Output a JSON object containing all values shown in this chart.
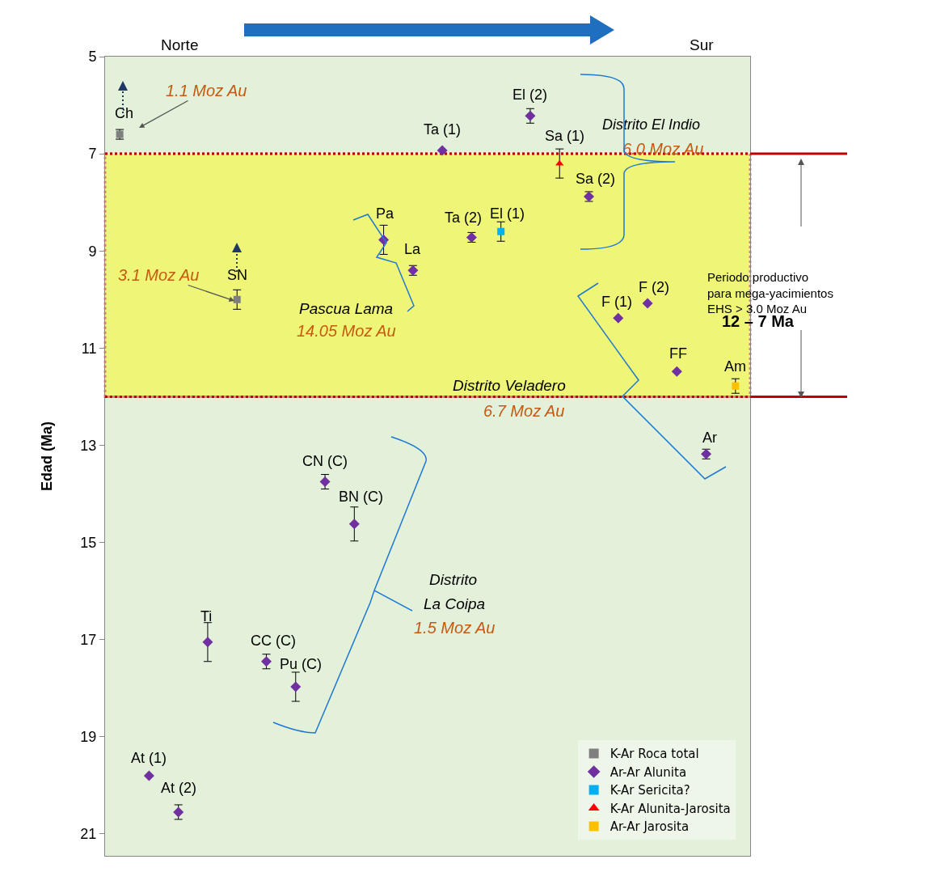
{
  "chart_data": {
    "type": "scatter",
    "ylabel": "Edad (Ma)",
    "categories": [
      null,
      null,
      null,
      null,
      null,
      null,
      null,
      null,
      null,
      null,
      null,
      null,
      null,
      null,
      null,
      null,
      null,
      null,
      null,
      null,
      null,
      null
    ],
    "ylim": [
      21.45,
      5
    ],
    "yticks": [
      5,
      7,
      9,
      11,
      13,
      15,
      17,
      19,
      21
    ],
    "tick_labels": "y",
    "grid": false,
    "legend": "bottom right",
    "series": [
      {
        "name": "K-Ar Roca total",
        "color": "#7f7f7f",
        "marker": "square",
        "values": [
          6.6,
          null,
          null,
          null,
          10.0,
          null,
          null,
          null,
          null,
          null,
          null,
          null,
          null,
          null,
          null,
          null,
          null,
          null,
          null,
          null,
          null,
          null
        ],
        "errors": [
          0.1,
          null,
          null,
          null,
          0.2,
          null,
          null,
          null,
          null,
          null,
          null,
          null,
          null,
          null,
          null,
          null,
          null,
          null,
          null,
          null,
          null,
          null
        ]
      },
      {
        "name": "Ar-Ar Alunita",
        "color": "#7030a0",
        "marker": "diamond",
        "values": [
          null,
          19.8,
          20.55,
          17.05,
          null,
          17.45,
          17.97,
          13.75,
          14.62,
          8.77,
          9.4,
          6.93,
          8.72,
          null,
          6.22,
          null,
          7.88,
          10.38,
          10.08,
          11.48,
          13.18,
          null
        ],
        "errors": [
          null,
          null,
          0.15,
          0.4,
          null,
          0.15,
          0.3,
          0.15,
          0.35,
          0.3,
          0.1,
          null,
          0.1,
          null,
          0.15,
          null,
          0.1,
          null,
          null,
          null,
          0.1,
          null
        ]
      },
      {
        "name": "K-Ar Sericita?",
        "color": "#00b0f0",
        "marker": "square",
        "values": [
          null,
          null,
          null,
          null,
          null,
          null,
          null,
          null,
          null,
          null,
          null,
          null,
          null,
          8.6,
          null,
          null,
          null,
          null,
          null,
          null,
          null,
          null
        ],
        "errors": [
          null,
          null,
          null,
          null,
          null,
          null,
          null,
          null,
          null,
          null,
          null,
          null,
          null,
          0.2,
          null,
          null,
          null,
          null,
          null,
          null,
          null,
          null
        ]
      },
      {
        "name": "K-Ar Alunita-Jarosita",
        "color": "#ff0000",
        "marker": "triangle",
        "values": [
          null,
          null,
          null,
          null,
          null,
          null,
          null,
          null,
          null,
          null,
          null,
          null,
          null,
          null,
          null,
          7.2,
          null,
          null,
          null,
          null,
          null,
          null
        ],
        "errors": [
          null,
          null,
          null,
          null,
          null,
          null,
          null,
          null,
          null,
          null,
          null,
          null,
          null,
          null,
          null,
          0.3,
          null,
          null,
          null,
          null,
          null,
          null
        ]
      },
      {
        "name": "Ar-Ar Jarosita",
        "color": "#ffc000",
        "marker": "square",
        "values": [
          null,
          null,
          null,
          null,
          null,
          null,
          null,
          null,
          null,
          null,
          null,
          null,
          null,
          null,
          null,
          null,
          null,
          null,
          null,
          null,
          null,
          11.78
        ],
        "errors": [
          null,
          null,
          null,
          null,
          null,
          null,
          null,
          null,
          null,
          null,
          null,
          null,
          null,
          null,
          null,
          null,
          null,
          null,
          null,
          null,
          null,
          0.15
        ]
      }
    ],
    "bands": [
      {
        "axis": "y",
        "from": 7,
        "to": 12,
        "color": "#ffff00",
        "label": "Periodo productivo\npara mega-yacimientos\nEHS > 3.0 Moz Au"
      }
    ],
    "ref_lines": [
      {
        "axis": "y",
        "value": 7,
        "color": "#c00000"
      },
      {
        "axis": "y",
        "value": 12,
        "color": "#c00000"
      }
    ],
    "annotations": [
      "Norte",
      "Sur",
      "1.1 Moz Au",
      "3.1 Moz Au",
      "Distrito El Indio",
      "6.0 Moz Au",
      "Pascua Lama",
      "14.05 Moz Au",
      "Distrito Veladero",
      "6.7 Moz Au",
      "Distrito",
      "La Coipa",
      "1.5 Moz Au",
      "12 – 7 Ma",
      {
        "text": "Ch",
        "y": 6.6
      },
      {
        "text": "SN",
        "y": 10.0
      },
      {
        "text": "At (1)",
        "y": 19.8
      },
      {
        "text": "At (2)",
        "y": 20.55
      },
      {
        "text": "Ti",
        "y": 17.05
      },
      {
        "text": "CC (C)",
        "y": 17.45
      },
      {
        "text": "Pu (C)",
        "y": 17.97
      },
      {
        "text": "CN (C)",
        "y": 13.75
      },
      {
        "text": "BN (C)",
        "y": 14.62
      },
      {
        "text": "Pa",
        "y": 8.77
      },
      {
        "text": "La",
        "y": 9.4
      },
      {
        "text": "Ta (1)",
        "y": 6.93
      },
      {
        "text": "Ta (2)",
        "y": 8.72
      },
      {
        "text": "El (1)",
        "y": 8.6
      },
      {
        "text": "El (2)",
        "y": 6.22
      },
      {
        "text": "Sa (1)",
        "y": 7.2
      },
      {
        "text": "Sa (2)",
        "y": 7.88
      },
      {
        "text": "F (1)",
        "y": 10.38
      },
      {
        "text": "F (2)",
        "y": 10.08
      },
      {
        "text": "FF",
        "y": 11.48
      },
      {
        "text": "Ar",
        "y": 13.18
      },
      {
        "text": "Am",
        "y": 11.78
      }
    ]
  }
}
